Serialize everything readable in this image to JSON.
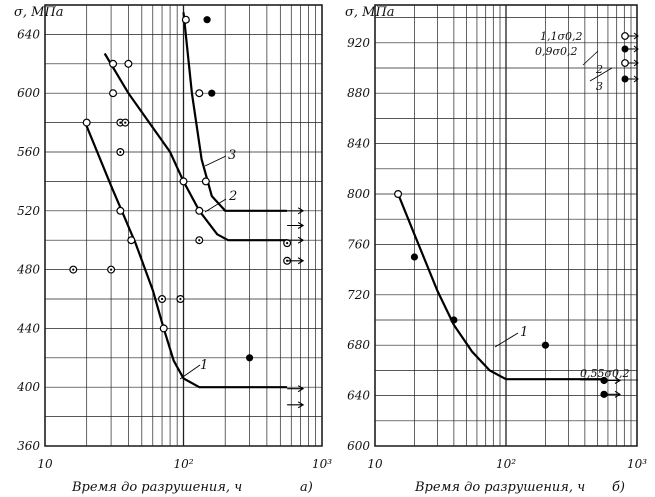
{
  "figure": {},
  "chart_data": [
    {
      "type": "scatter",
      "panel_label": "а)",
      "ylabel": "σ, МПа",
      "xlabel": "Время до разрушения, ч",
      "xscale": "log",
      "xlim": [
        10,
        1000
      ],
      "ylim": [
        360,
        660
      ],
      "x_tick_labels": [
        "10",
        "10²",
        "10³"
      ],
      "y_ticks": [
        360,
        400,
        440,
        480,
        520,
        560,
        600,
        640
      ],
      "grid": "on",
      "series": [
        {
          "name": "1",
          "curve": [
            [
              19.5,
              580
            ],
            [
              30,
              537
            ],
            [
              45,
              498
            ],
            [
              60,
              466
            ],
            [
              72,
              440
            ],
            [
              85,
              418
            ],
            [
              100,
              406
            ],
            [
              130,
              400
            ],
            [
              560,
              400
            ]
          ],
          "points_open": [
            [
              20,
              580
            ],
            [
              35,
              520
            ],
            [
              42,
              500
            ],
            [
              72,
              440
            ]
          ],
          "points_dot": [
            [
              16,
              480
            ],
            [
              30,
              480
            ],
            [
              35,
              560
            ],
            [
              70,
              460
            ],
            [
              95,
              460
            ],
            [
              35,
              580
            ]
          ],
          "runouts": [
            [
              560,
              399
            ],
            [
              560,
              388
            ]
          ]
        },
        {
          "name": "2",
          "curve": [
            [
              27,
              627
            ],
            [
              40,
              600
            ],
            [
              80,
              560
            ],
            [
              100,
              540
            ],
            [
              130,
              520
            ],
            [
              175,
              504
            ],
            [
              210,
              500
            ],
            [
              560,
              500
            ]
          ],
          "points_open": [
            [
              31,
              620
            ],
            [
              40,
              620
            ],
            [
              31,
              600
            ],
            [
              100,
              540
            ],
            [
              130,
              520
            ]
          ],
          "points_dot": [
            [
              38,
              580
            ],
            [
              130,
              500
            ],
            [
              560,
              498
            ],
            [
              560,
              486
            ]
          ],
          "runouts": [
            [
              560,
              500
            ],
            [
              560,
              486
            ]
          ]
        },
        {
          "name": "3",
          "curve": [
            [
              100,
              655
            ],
            [
              115,
              600
            ],
            [
              135,
              555
            ],
            [
              160,
              530
            ],
            [
              200,
              520
            ],
            [
              560,
              520
            ]
          ],
          "points_open": [
            [
              104,
              650
            ],
            [
              130,
              600
            ],
            [
              145,
              540
            ]
          ],
          "points_solid": [
            [
              148,
              650
            ],
            [
              160,
              600
            ],
            [
              300,
              420
            ]
          ],
          "runouts": [
            [
              560,
              520
            ],
            [
              560,
              510
            ]
          ]
        }
      ]
    },
    {
      "type": "scatter",
      "panel_label": "б)",
      "ylabel": "σ, МПа",
      "xlabel": "Время до разрушения, ч",
      "xscale": "log",
      "xlim": [
        10,
        1000
      ],
      "ylim": [
        600,
        950
      ],
      "x_tick_labels": [
        "10",
        "10²",
        "10³"
      ],
      "y_ticks": [
        600,
        640,
        680,
        720,
        760,
        800,
        840,
        880,
        920
      ],
      "grid": "on",
      "series": [
        {
          "name": "1",
          "curve": [
            [
              15,
              800
            ],
            [
              20,
              768
            ],
            [
              30,
              723
            ],
            [
              40,
              696
            ],
            [
              55,
              675
            ],
            [
              75,
              660
            ],
            [
              100,
              653
            ],
            [
              560,
              653
            ]
          ],
          "points_open": [
            [
              15,
              800
            ]
          ],
          "points_solid": [
            [
              20,
              750
            ],
            [
              40,
              700
            ],
            [
              200,
              680
            ],
            [
              560,
              652
            ],
            [
              560,
              641
            ]
          ],
          "runouts": [
            [
              560,
              652
            ],
            [
              560,
              641
            ]
          ]
        }
      ],
      "legend": [
        {
          "marker": "open",
          "label": "1,1σ0,2"
        },
        {
          "marker": "solid",
          "label": "0,9σ0,2"
        },
        {
          "marker": "open",
          "label": "2"
        },
        {
          "marker": "solid",
          "label": "3"
        }
      ],
      "annotation": "0,55σ0,2"
    }
  ],
  "labels": {
    "a_ylabel": "σ, МПа",
    "b_ylabel": "σ, МПа",
    "a_xlabel": "Время до разрушения, ч",
    "b_xlabel": "Время до разрушения, ч",
    "a_panel": "а)",
    "b_panel": "б)",
    "a_curve_1": "1",
    "a_curve_2": "2",
    "a_curve_3": "3",
    "b_curve_1": "1",
    "b_annotation": "0,55σ0,2",
    "b_legend_1": "1,1σ0,2",
    "b_legend_2": "0,9σ0,2",
    "b_legend_3": "2",
    "b_legend_4": "3"
  }
}
